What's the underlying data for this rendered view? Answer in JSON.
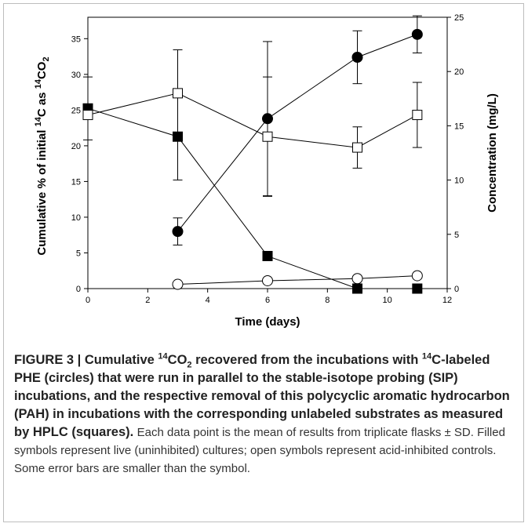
{
  "chart_data": {
    "type": "line",
    "xlabel": "Time (days)",
    "ylabel_left": "Cumulative % of initial 14C as 14CO2",
    "ylabel_right": "Concentration (mg/L)",
    "xlim": [
      0,
      12
    ],
    "ylim_left": [
      0,
      38
    ],
    "ylim_right": [
      0,
      25
    ],
    "x_ticks": [
      0,
      2,
      4,
      6,
      8,
      10,
      12
    ],
    "y_ticks_left": [
      0,
      5,
      10,
      15,
      20,
      25,
      30,
      35
    ],
    "y_ticks_right": [
      0,
      5,
      10,
      15,
      20,
      25
    ],
    "grid": false,
    "series": [
      {
        "marker": "filled-circle",
        "axis": "left",
        "x": [
          3,
          6,
          9,
          11
        ],
        "y": [
          8.0,
          23.8,
          32.4,
          35.6
        ],
        "err": [
          1.9,
          10.8,
          3.7,
          2.6
        ]
      },
      {
        "marker": "open-circle",
        "axis": "left",
        "x": [
          3,
          6,
          9,
          11
        ],
        "y": [
          0.6,
          1.1,
          1.4,
          1.8
        ],
        "err": [
          0,
          0,
          0,
          0
        ]
      },
      {
        "marker": "filled-square",
        "axis": "right",
        "x": [
          0,
          3,
          6,
          9,
          11
        ],
        "y": [
          16.6,
          14.0,
          3.0,
          0.0,
          0.0
        ],
        "err": [
          2.9,
          4.0,
          0,
          0,
          0
        ]
      },
      {
        "marker": "open-square",
        "axis": "right",
        "x": [
          0,
          3,
          6,
          9,
          11
        ],
        "y": [
          16.0,
          18.0,
          14.0,
          13.0,
          16.0
        ],
        "err": [
          0,
          4.0,
          5.5,
          1.9,
          3.0
        ]
      }
    ]
  },
  "caption": {
    "figure_label": "FIGURE 3 | Cumulative ",
    "bold_sup1": "14",
    "bold_co": "CO",
    "bold_sub": "2",
    "bold_after1": " recovered from the incubations with ",
    "bold_sup2": "14",
    "bold_rest": "C-labeled PHE (circles) that were run in parallel to the stable-isotope probing (SIP) incubations, and the respective removal of this polycyclic aromatic hydrocarbon (PAH) in incubations with the corresponding unlabeled substrates as measured by HPLC (squares).",
    "plain": "Each data point is the mean of results from triplicate flasks ± SD. Filled symbols represent live (uninhibited) cultures; open symbols represent acid-inhibited controls. Some error bars are smaller than the symbol."
  }
}
